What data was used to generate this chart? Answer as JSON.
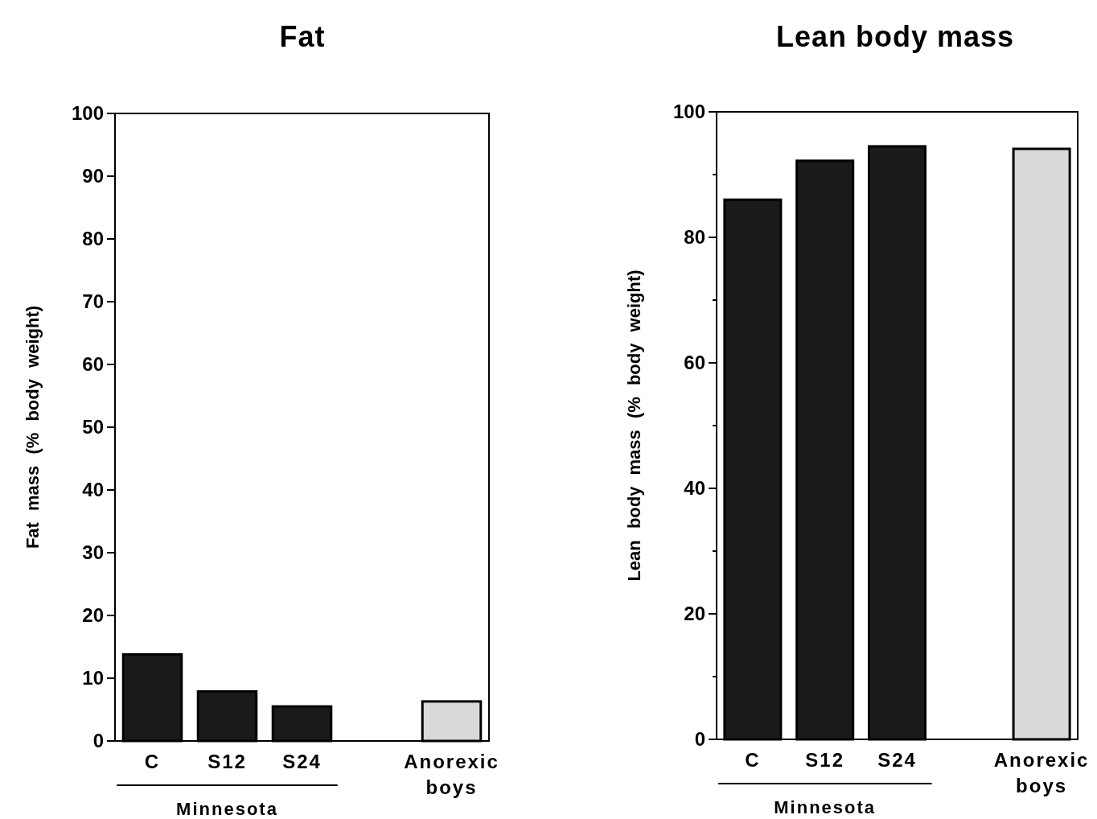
{
  "chart_data": [
    {
      "type": "bar",
      "title": "Fat",
      "ylabel": "Fat mass (% body weight)",
      "categories": [
        "C",
        "S12",
        "S24",
        null,
        "Anorexic boys"
      ],
      "values": [
        13.8,
        7.9,
        5.5,
        null,
        6.3
      ],
      "colors": [
        "#1a1a1a",
        "#1a1a1a",
        "#1a1a1a",
        null,
        "#d9d9d9"
      ],
      "ylim": [
        0,
        100
      ],
      "yticks": [
        0,
        10,
        20,
        30,
        40,
        50,
        60,
        70,
        80,
        90,
        100
      ],
      "annotations": [
        "Minnesota"
      ]
    },
    {
      "type": "bar",
      "title": "Lean body mass",
      "ylabel": "Lean body mass (% body weight)",
      "categories": [
        "C",
        "S12",
        "S24",
        null,
        "Anorexic boys"
      ],
      "values": [
        86,
        92.2,
        94.5,
        null,
        94.1
      ],
      "colors": [
        "#1a1a1a",
        "#1a1a1a",
        "#1a1a1a",
        null,
        "#d9d9d9"
      ],
      "ylim": [
        0,
        100
      ],
      "yticks": [
        0,
        {
          "value": 10,
          "label": null
        },
        20,
        {
          "value": 30,
          "label": null
        },
        40,
        {
          "value": 50,
          "label": null
        },
        60,
        {
          "value": 70,
          "label": null
        },
        80,
        {
          "value": 90,
          "label": null
        },
        100
      ],
      "annotations": [
        "Minnesota"
      ]
    }
  ]
}
